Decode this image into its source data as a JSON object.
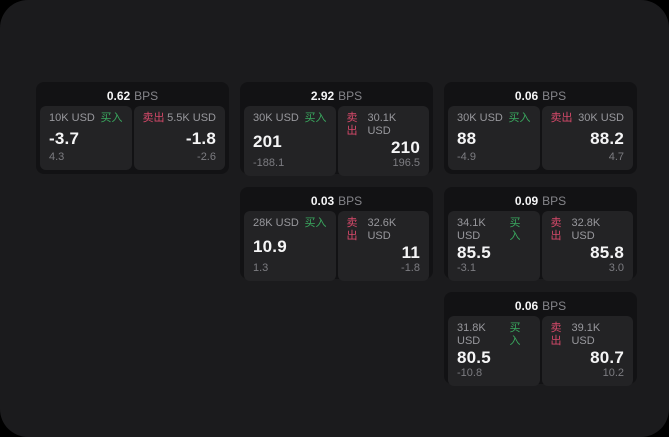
{
  "labels": {
    "buy": "买入",
    "sell": "卖出",
    "bps_unit": "BPS"
  },
  "colors": {
    "background": "#000000",
    "app_surface": "#1b1b1d",
    "card_surface": "#121214",
    "panel_surface": "#232325",
    "buy_green": "#3aa95f",
    "sell_red": "#d6496a"
  },
  "cards": [
    {
      "row": 1,
      "col": 1,
      "bps": "0.62",
      "buy": {
        "amount": "10K USD",
        "price": "-3.7",
        "delta": "4.3"
      },
      "sell": {
        "amount": "5.5K USD",
        "price": "-1.8",
        "delta": "-2.6"
      }
    },
    {
      "row": 1,
      "col": 2,
      "bps": "2.92",
      "buy": {
        "amount": "30K USD",
        "price": "201",
        "delta": "-188.1"
      },
      "sell": {
        "amount": "30.1K USD",
        "price": "210",
        "delta": "196.5"
      }
    },
    {
      "row": 1,
      "col": 3,
      "bps": "0.06",
      "buy": {
        "amount": "30K USD",
        "price": "88",
        "delta": "-4.9"
      },
      "sell": {
        "amount": "30K USD",
        "price": "88.2",
        "delta": "4.7"
      }
    },
    {
      "row": 2,
      "col": 2,
      "bps": "0.03",
      "buy": {
        "amount": "28K USD",
        "price": "10.9",
        "delta": "1.3"
      },
      "sell": {
        "amount": "32.6K USD",
        "price": "11",
        "delta": "-1.8"
      }
    },
    {
      "row": 2,
      "col": 3,
      "bps": "0.09",
      "buy": {
        "amount": "34.1K USD",
        "price": "85.5",
        "delta": "-3.1"
      },
      "sell": {
        "amount": "32.8K USD",
        "price": "85.8",
        "delta": "3.0"
      }
    },
    {
      "row": 3,
      "col": 3,
      "bps": "0.06",
      "buy": {
        "amount": "31.8K USD",
        "price": "80.5",
        "delta": "-10.8"
      },
      "sell": {
        "amount": "39.1K USD",
        "price": "80.7",
        "delta": "10.2"
      }
    }
  ]
}
